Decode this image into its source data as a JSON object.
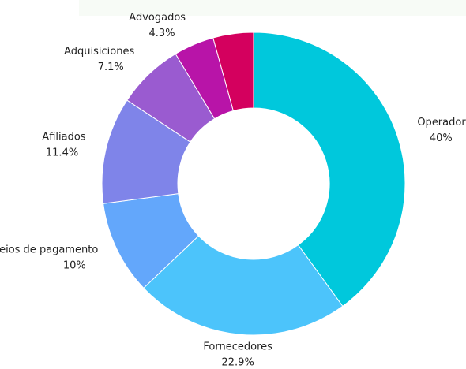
{
  "chart_data": {
    "type": "donut",
    "categories": [
      "Operadores",
      "Fornecedores",
      "Meios de pagamento",
      "Afiliados",
      "Adquisiciones",
      "Advogados",
      null
    ],
    "values": [
      40,
      22.9,
      10,
      11.4,
      7.1,
      4.3,
      4.3
    ],
    "value_labels": [
      "40%",
      "22.9%",
      "10%",
      "11.4%",
      "7.1%",
      "4.3%",
      null
    ],
    "colors": [
      "#00c8dc",
      "#4cc4fb",
      "#63a7fb",
      "#7f84e9",
      "#9a5bd0",
      "#b814a8",
      "#d4005e"
    ]
  }
}
